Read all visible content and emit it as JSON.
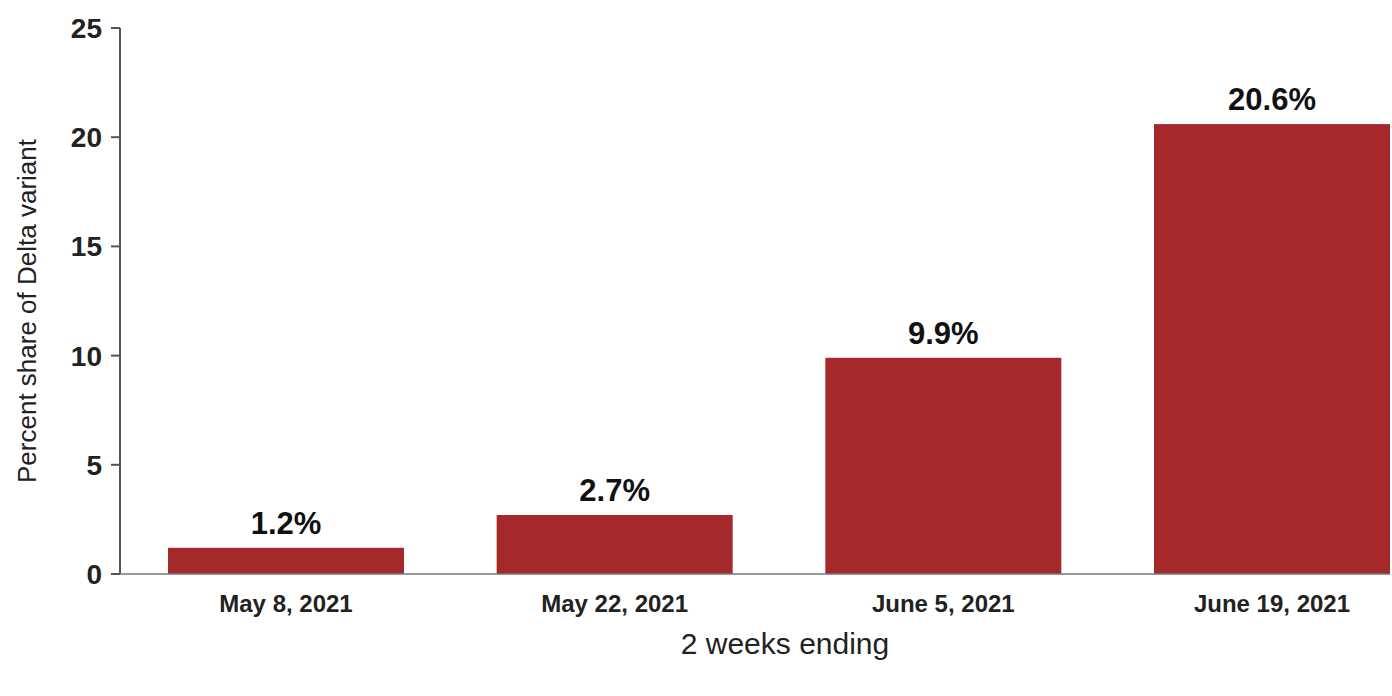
{
  "chart_data": {
    "type": "bar",
    "categories": [
      "May 8, 2021",
      "May 22, 2021",
      "June 5, 2021",
      "June 19, 2021"
    ],
    "values": [
      1.2,
      2.7,
      9.9,
      20.6
    ],
    "value_labels": [
      "1.2%",
      "2.7%",
      "9.9%",
      "20.6%"
    ],
    "data_labels": true,
    "color": "#a5282b",
    "x_label": "2 weeks ending",
    "y_label": "Percent share of Delta variant",
    "ylim": [
      0,
      25
    ],
    "yticks": [
      0,
      5,
      10,
      15,
      20,
      25
    ],
    "grid": false
  }
}
